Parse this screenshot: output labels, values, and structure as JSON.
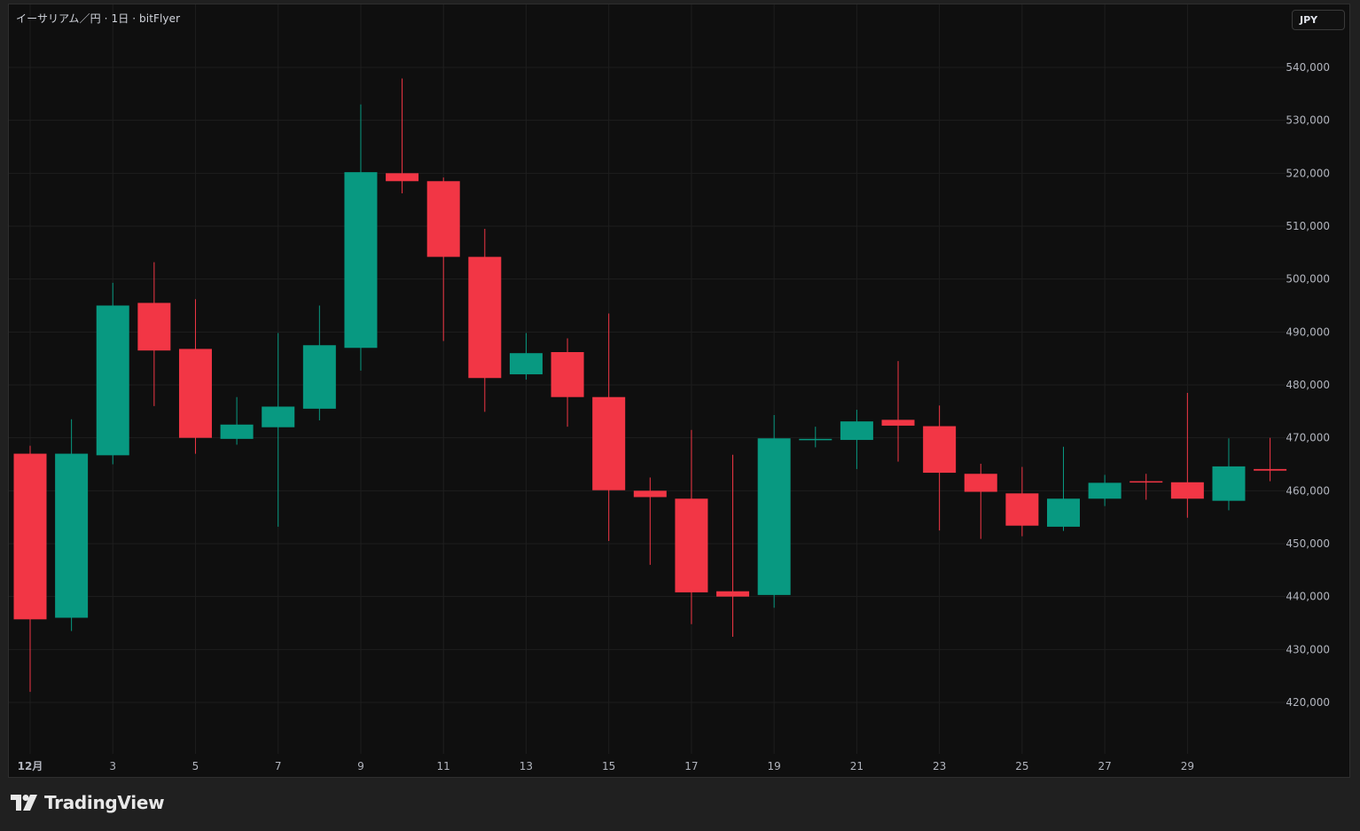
{
  "header": {
    "symbol_title": "イーサリアム／円 · 1日 · bitFlyer",
    "currency_button": "JPY"
  },
  "footer": {
    "brand": "TradingView"
  },
  "colors": {
    "up": "#089981",
    "down": "#f23645",
    "background": "#0f0f0f",
    "grid": "#1e1e1e",
    "axis_text": "#b2b5be"
  },
  "chart_data": {
    "type": "candlestick",
    "title": "イーサリアム／円 · 1日 · bitFlyer",
    "currency": "JPY",
    "ylim": [
      410000,
      545000
    ],
    "y_ticks": [
      420000,
      430000,
      440000,
      450000,
      460000,
      470000,
      480000,
      490000,
      500000,
      510000,
      520000,
      530000,
      540000
    ],
    "y_tick_labels": [
      "420,000",
      "430,000",
      "440,000",
      "450,000",
      "460,000",
      "470,000",
      "480,000",
      "490,000",
      "500,000",
      "510,000",
      "520,000",
      "530,000",
      "540,000"
    ],
    "x_labels": [
      {
        "day": 1,
        "label": "12月"
      },
      {
        "day": 3,
        "label": "3"
      },
      {
        "day": 5,
        "label": "5"
      },
      {
        "day": 7,
        "label": "7"
      },
      {
        "day": 9,
        "label": "9"
      },
      {
        "day": 11,
        "label": "11"
      },
      {
        "day": 13,
        "label": "13"
      },
      {
        "day": 15,
        "label": "15"
      },
      {
        "day": 17,
        "label": "17"
      },
      {
        "day": 19,
        "label": "19"
      },
      {
        "day": 21,
        "label": "21"
      },
      {
        "day": 23,
        "label": "23"
      },
      {
        "day": 25,
        "label": "25"
      },
      {
        "day": 27,
        "label": "27"
      },
      {
        "day": 29,
        "label": "29"
      }
    ],
    "grid": true,
    "candles": [
      {
        "day": 1,
        "open": 467000,
        "high": 468500,
        "low": 422000,
        "close": 435700
      },
      {
        "day": 2,
        "open": 436000,
        "high": 473500,
        "low": 433500,
        "close": 467000
      },
      {
        "day": 3,
        "open": 466700,
        "high": 499300,
        "low": 465000,
        "close": 495000
      },
      {
        "day": 4,
        "open": 495500,
        "high": 503200,
        "low": 476000,
        "close": 486500
      },
      {
        "day": 5,
        "open": 486800,
        "high": 496200,
        "low": 467000,
        "close": 470000
      },
      {
        "day": 6,
        "open": 469800,
        "high": 477700,
        "low": 468700,
        "close": 472500
      },
      {
        "day": 7,
        "open": 472000,
        "high": 489800,
        "low": 453200,
        "close": 475900
      },
      {
        "day": 8,
        "open": 475500,
        "high": 495000,
        "low": 473300,
        "close": 487500
      },
      {
        "day": 9,
        "open": 487000,
        "high": 533000,
        "low": 482700,
        "close": 520200
      },
      {
        "day": 10,
        "open": 520000,
        "high": 537900,
        "low": 516200,
        "close": 518500
      },
      {
        "day": 11,
        "open": 518500,
        "high": 519200,
        "low": 488300,
        "close": 504200
      },
      {
        "day": 12,
        "open": 504200,
        "high": 509500,
        "low": 474900,
        "close": 481300
      },
      {
        "day": 13,
        "open": 482000,
        "high": 489800,
        "low": 481000,
        "close": 486000
      },
      {
        "day": 14,
        "open": 486200,
        "high": 488800,
        "low": 472100,
        "close": 477700
      },
      {
        "day": 15,
        "open": 477700,
        "high": 493500,
        "low": 450500,
        "close": 460100
      },
      {
        "day": 16,
        "open": 460000,
        "high": 462500,
        "low": 446000,
        "close": 458800
      },
      {
        "day": 17,
        "open": 458500,
        "high": 471500,
        "low": 434800,
        "close": 440800
      },
      {
        "day": 18,
        "open": 441000,
        "high": 466800,
        "low": 432400,
        "close": 440000
      },
      {
        "day": 19,
        "open": 440300,
        "high": 474300,
        "low": 437900,
        "close": 469900
      },
      {
        "day": 20,
        "open": 469600,
        "high": 472100,
        "low": 468200,
        "close": 469800
      },
      {
        "day": 21,
        "open": 469600,
        "high": 475300,
        "low": 464100,
        "close": 473100
      },
      {
        "day": 22,
        "open": 473400,
        "high": 484500,
        "low": 465500,
        "close": 472300
      },
      {
        "day": 23,
        "open": 472200,
        "high": 476100,
        "low": 452500,
        "close": 463400
      },
      {
        "day": 24,
        "open": 463200,
        "high": 465100,
        "low": 450900,
        "close": 459800
      },
      {
        "day": 25,
        "open": 459500,
        "high": 464500,
        "low": 451400,
        "close": 453400
      },
      {
        "day": 26,
        "open": 453200,
        "high": 468300,
        "low": 452400,
        "close": 458500
      },
      {
        "day": 27,
        "open": 458500,
        "high": 463000,
        "low": 457100,
        "close": 461500
      },
      {
        "day": 28,
        "open": 461800,
        "high": 463200,
        "low": 458300,
        "close": 461600
      },
      {
        "day": 29,
        "open": 461600,
        "high": 478500,
        "low": 454900,
        "close": 458500
      },
      {
        "day": 30,
        "open": 458100,
        "high": 469900,
        "low": 456300,
        "close": 464600
      },
      {
        "day": 31,
        "open": 464100,
        "high": 470000,
        "low": 461800,
        "close": 463800
      }
    ]
  }
}
